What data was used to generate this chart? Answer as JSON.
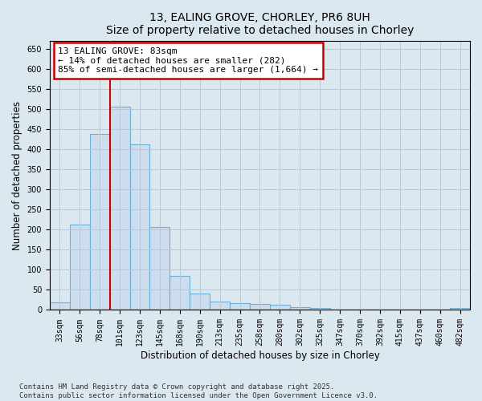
{
  "title": "13, EALING GROVE, CHORLEY, PR6 8UH",
  "subtitle": "Size of property relative to detached houses in Chorley",
  "xlabel": "Distribution of detached houses by size in Chorley",
  "ylabel": "Number of detached properties",
  "categories": [
    "33sqm",
    "56sqm",
    "78sqm",
    "101sqm",
    "123sqm",
    "145sqm",
    "168sqm",
    "190sqm",
    "213sqm",
    "235sqm",
    "258sqm",
    "280sqm",
    "302sqm",
    "325sqm",
    "347sqm",
    "370sqm",
    "392sqm",
    "415sqm",
    "437sqm",
    "460sqm",
    "482sqm"
  ],
  "values": [
    18,
    212,
    437,
    505,
    411,
    207,
    85,
    40,
    20,
    17,
    15,
    12,
    7,
    4,
    1,
    1,
    1,
    0,
    0,
    0,
    4
  ],
  "bar_color": "#ccdded",
  "bar_edge_color": "#6baed6",
  "vline_color": "#cc0000",
  "annotation_text": "13 EALING GROVE: 83sqm\n← 14% of detached houses are smaller (282)\n85% of semi-detached houses are larger (1,664) →",
  "annotation_box_color": "#ffffff",
  "annotation_box_edge": "#cc0000",
  "ylim": [
    0,
    670
  ],
  "yticks": [
    0,
    50,
    100,
    150,
    200,
    250,
    300,
    350,
    400,
    450,
    500,
    550,
    600,
    650
  ],
  "footer": "Contains HM Land Registry data © Crown copyright and database right 2025.\nContains public sector information licensed under the Open Government Licence v3.0.",
  "background_color": "#dce8f0",
  "plot_background": "#dce8f0",
  "grid_color": "#b8c8d8",
  "title_fontsize": 10,
  "tick_fontsize": 7,
  "label_fontsize": 8.5,
  "footer_fontsize": 6.5
}
